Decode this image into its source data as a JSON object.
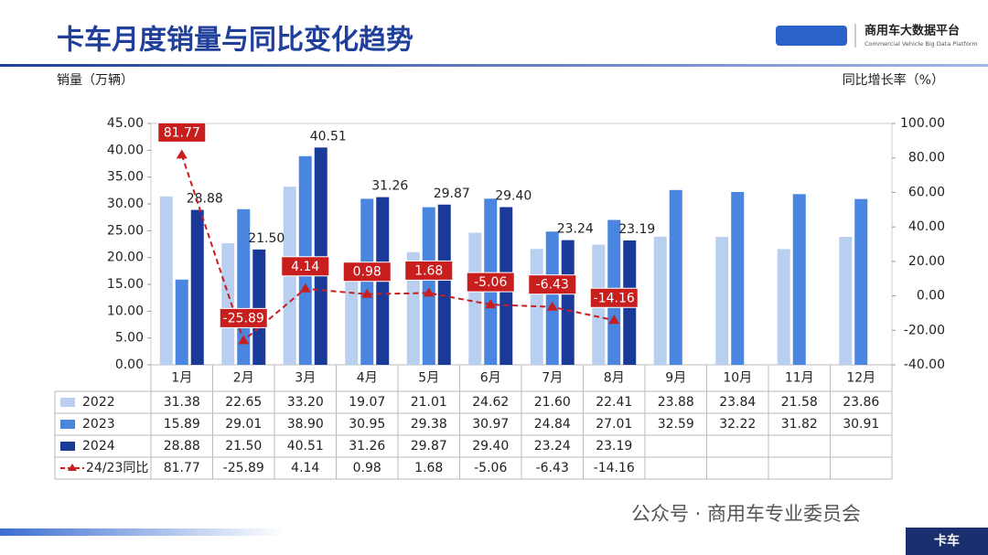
{
  "chart_data": {
    "type": "bar",
    "title": "卡车月度销量与同比变化趋势",
    "y_label": "销量（万辆）",
    "y2_label": "同比增长率（%）",
    "categories": [
      "1月",
      "2月",
      "3月",
      "4月",
      "5月",
      "6月",
      "7月",
      "8月",
      "9月",
      "10月",
      "11月",
      "12月"
    ],
    "series": [
      {
        "name": "2022",
        "color": "#b9cff0",
        "type": "bar",
        "values": [
          31.38,
          22.65,
          33.2,
          19.07,
          21.01,
          24.62,
          21.6,
          22.41,
          23.88,
          23.84,
          21.58,
          23.86
        ],
        "value_labels": [
          "31.38",
          "22.65",
          "33.20",
          "19.07",
          "21.01",
          "24.62",
          "21.60",
          "22.41",
          "23.88",
          "23.84",
          "21.58",
          "23.86"
        ]
      },
      {
        "name": "2023",
        "color": "#4a86e0",
        "type": "bar",
        "values": [
          15.89,
          29.01,
          38.9,
          30.95,
          29.38,
          30.97,
          24.84,
          27.01,
          32.59,
          32.22,
          31.82,
          30.91
        ],
        "value_labels": [
          "15.89",
          "29.01",
          "38.90",
          "30.95",
          "29.38",
          "30.97",
          "24.84",
          "27.01",
          "32.59",
          "32.22",
          "31.82",
          "30.91"
        ]
      },
      {
        "name": "2024",
        "color": "#1a3a9a",
        "type": "bar",
        "values": [
          28.88,
          21.5,
          40.51,
          31.26,
          29.87,
          29.4,
          23.24,
          23.19,
          null,
          null,
          null,
          null
        ],
        "value_labels": [
          "28.88",
          "21.50",
          "40.51",
          "31.26",
          "29.87",
          "29.40",
          "23.24",
          "23.19",
          null,
          null,
          null,
          null
        ]
      },
      {
        "name": "24/23同比",
        "color": "#c81e1e",
        "type": "line",
        "axis": "y2",
        "values": [
          81.77,
          -25.89,
          4.14,
          0.98,
          1.68,
          -5.06,
          -6.43,
          -14.16,
          null,
          null,
          null,
          null
        ],
        "value_labels": [
          "81.77",
          "-25.89",
          "4.14",
          "0.98",
          "1.68",
          "-5.06",
          "-6.43",
          "-14.16",
          null,
          null,
          null,
          null
        ]
      }
    ],
    "ylim": [
      0,
      45
    ],
    "yticks": [
      {
        "value": 0,
        "label": "0.00"
      },
      {
        "value": 5,
        "label": "5.00"
      },
      {
        "value": 10,
        "label": "10.00"
      },
      {
        "value": 15,
        "label": "15.00"
      },
      {
        "value": 20,
        "label": "20.00"
      },
      {
        "value": 25,
        "label": "25.00"
      },
      {
        "value": 30,
        "label": "30.00"
      },
      {
        "value": 35,
        "label": "35.00"
      },
      {
        "value": 40,
        "label": "40.00"
      },
      {
        "value": 45,
        "label": "45.00"
      }
    ],
    "y2lim": [
      -40,
      100
    ],
    "y2ticks": [
      {
        "value": -40,
        "label": "-40.00"
      },
      {
        "value": -20,
        "label": "-20.00"
      },
      {
        "value": 0,
        "label": "0.00"
      },
      {
        "value": 20,
        "label": "20.00"
      },
      {
        "value": 40,
        "label": "40.00"
      },
      {
        "value": 60,
        "label": "60.00"
      },
      {
        "value": 80,
        "label": "80.00"
      },
      {
        "value": 100,
        "label": "100.00"
      }
    ],
    "grid": false
  },
  "logo": {
    "name": "商用车大数据平台",
    "subtitle": "Commercial Vehicle Big Data Platform"
  },
  "footer": {
    "source": "公众号 · 商用车专业委员会",
    "tag": "卡车"
  }
}
